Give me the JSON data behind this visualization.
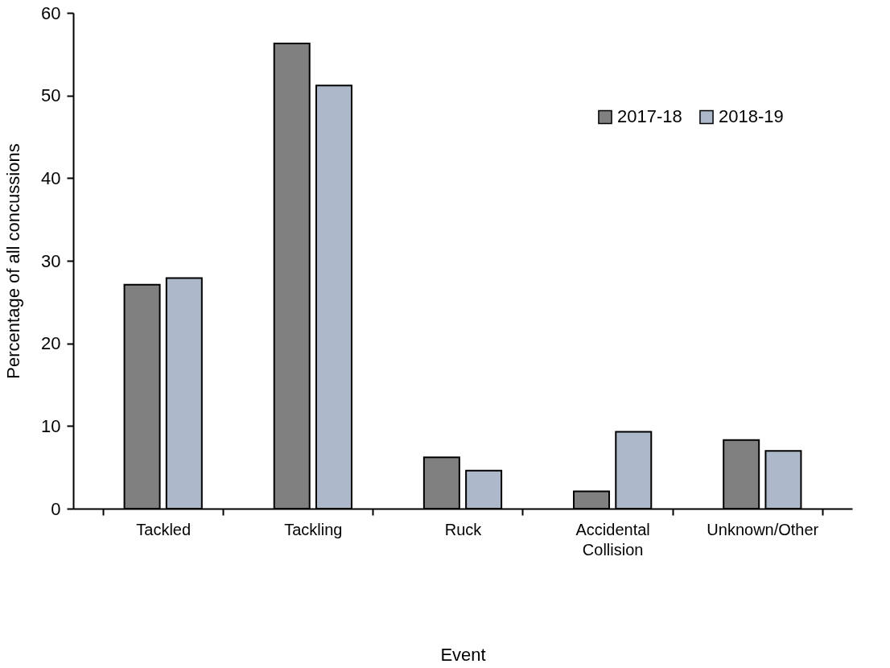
{
  "chart_data": {
    "type": "bar",
    "xlabel": "Event",
    "ylabel": "Percentage of  all concussions",
    "categories": [
      "Tackled",
      "Tackling",
      "Ruck",
      "Accidental Collision",
      "Unknown/Other"
    ],
    "series": [
      {
        "name": "2017-18",
        "color": "#808080",
        "values": [
          27.1,
          56.3,
          6.2,
          2.1,
          8.3
        ]
      },
      {
        "name": "2018-19",
        "color": "#adb9ca",
        "values": [
          27.9,
          51.2,
          4.6,
          9.3,
          7.0
        ]
      }
    ],
    "ylim": [
      0,
      60
    ],
    "yticks": [
      0,
      10,
      20,
      30,
      40,
      50,
      60
    ],
    "grid": false,
    "legend": "top right"
  }
}
